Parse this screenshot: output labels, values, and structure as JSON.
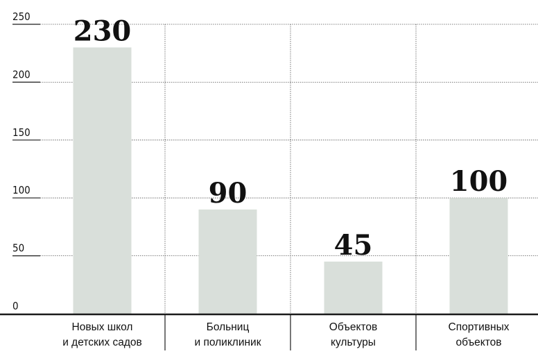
{
  "chart_data": {
    "type": "bar",
    "categories": [
      [
        "Новых школ",
        "и детских садов"
      ],
      [
        "Больниц",
        "и поликлиник"
      ],
      [
        "Объектов",
        "культуры"
      ],
      [
        "Спортивных",
        "объектов"
      ]
    ],
    "values": [
      230,
      90,
      45,
      100
    ],
    "value_labels": [
      "230",
      "90",
      "45",
      "100"
    ],
    "yticks": [
      "0",
      "50",
      "100",
      "150",
      "200",
      "250"
    ],
    "ylim": [
      0,
      250
    ],
    "grid": true,
    "colors": {
      "bar": "#d9dfda",
      "axis": "#1a1a1a",
      "grid": "#555555",
      "text": "#111111"
    }
  }
}
